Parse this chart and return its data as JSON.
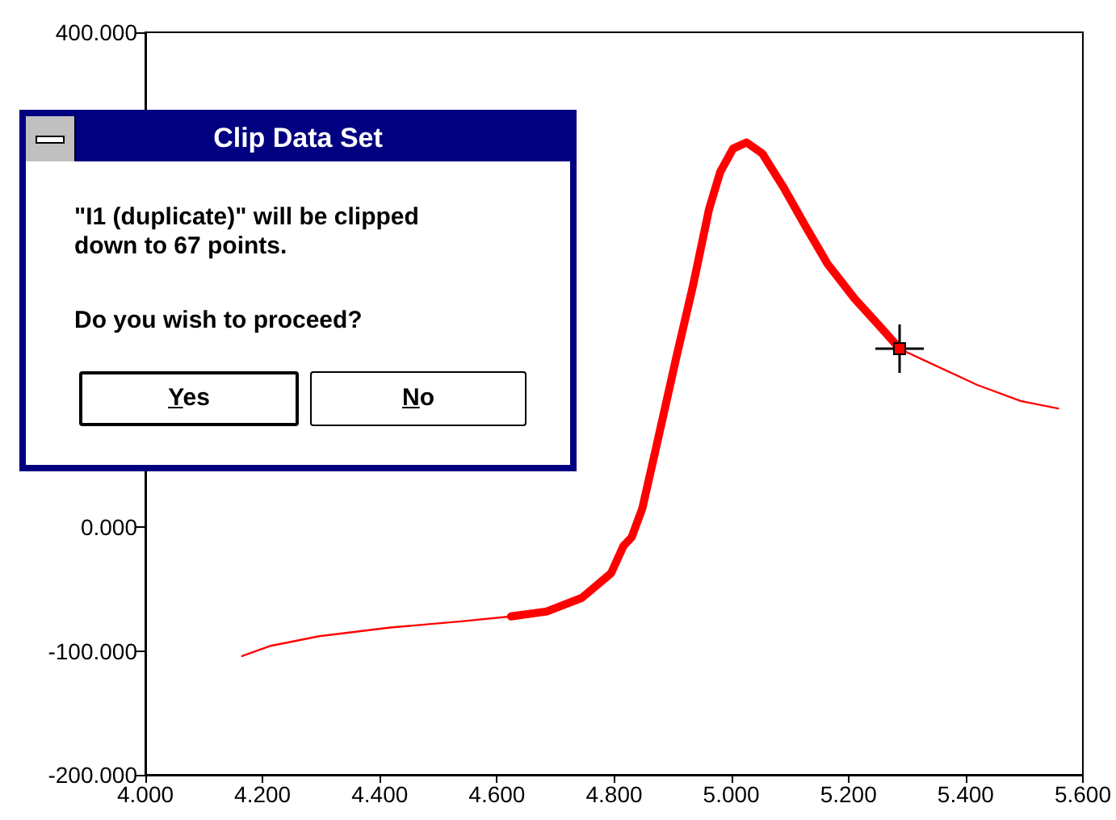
{
  "chart_data": {
    "type": "line",
    "xlim": [
      4.0,
      5.6
    ],
    "xticks": [
      {
        "value": 4.0,
        "label": "4.000"
      },
      {
        "value": 4.2,
        "label": "4.200"
      },
      {
        "value": 4.4,
        "label": "4.400"
      },
      {
        "value": 4.6,
        "label": "4.600"
      },
      {
        "value": 4.8,
        "label": "4.800"
      },
      {
        "value": 5.0,
        "label": "5.000"
      },
      {
        "value": 5.2,
        "label": "5.200"
      },
      {
        "value": 5.4,
        "label": "5.400"
      },
      {
        "value": 5.6,
        "label": "5.600"
      }
    ],
    "ylim": [
      -200,
      400
    ],
    "yticks": [
      {
        "value": -200,
        "label": "-200.000"
      },
      {
        "value": -100,
        "label": "-100.000"
      },
      {
        "value": 0,
        "label": "0.000"
      },
      {
        "value": 400,
        "label": "400.000"
      }
    ],
    "grid": false,
    "marker": "none",
    "line_style": "solid",
    "series": [
      {
        "color": "#ff0000",
        "x": [
          4.165,
          4.212,
          4.297,
          4.418,
          4.539,
          4.624
        ],
        "values": [
          -104,
          -96,
          -88,
          -81,
          -76,
          -72
        ]
      },
      {
        "color": "#ff0000",
        "x": [
          4.624,
          4.685,
          4.745,
          4.795,
          4.816,
          4.83,
          4.848,
          4.871,
          4.907,
          4.935,
          4.962,
          4.981,
          5.003,
          5.026,
          5.053,
          5.09,
          5.127,
          5.164,
          5.21,
          5.256,
          5.288
        ],
        "values": [
          -72,
          -68,
          -57,
          -37,
          -15,
          -8,
          15,
          63,
          139,
          196,
          257,
          287,
          306,
          311,
          302,
          274,
          243,
          213,
          185,
          161,
          144
        ]
      },
      {
        "color": "#ff0000",
        "x": [
          5.288,
          5.329,
          5.42,
          5.494,
          5.558
        ],
        "values": [
          144,
          135,
          115,
          102,
          96
        ]
      }
    ],
    "annotations": [
      "Clip Data Set",
      "\"I1 (duplicate)\" will be clipped down to 67 points.",
      "Do you wish to proceed?",
      "Yes",
      "No"
    ]
  }
}
